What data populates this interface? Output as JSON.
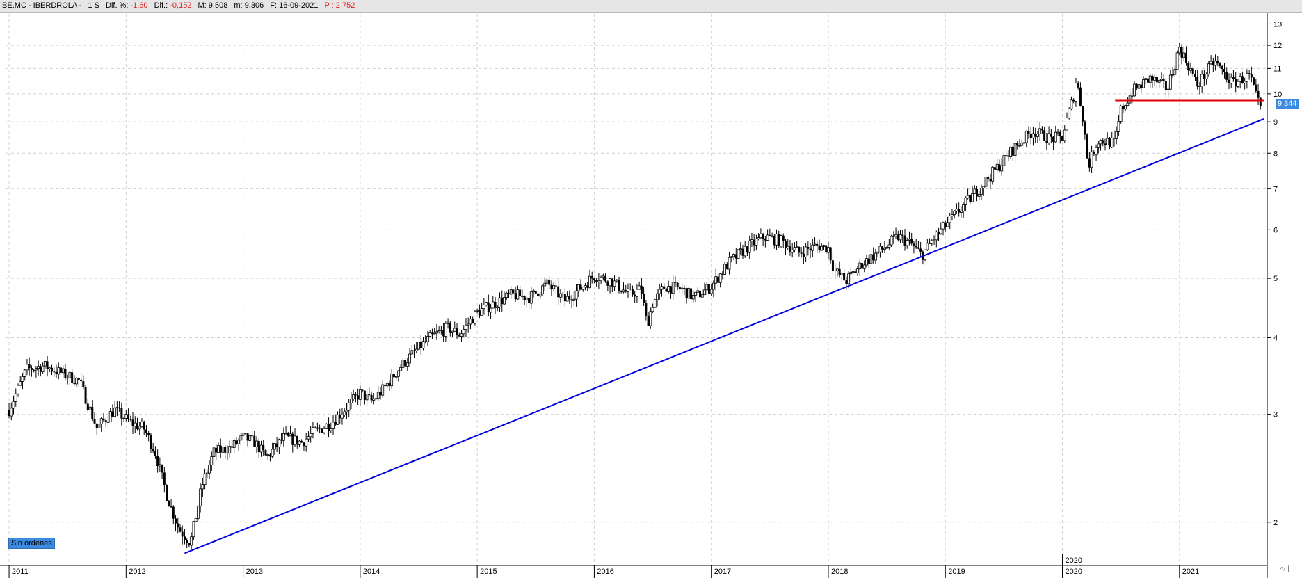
{
  "header": {
    "symbol": "IBE.MC - IBERDROLA -",
    "timeframe": "1 S",
    "dif_pct_label": "Dif. %:",
    "dif_pct_value": "-1,60",
    "dif_label": "Dif.:",
    "dif_value": "-0,152",
    "max_label": "M:",
    "max_value": "9,508",
    "min_label": "m:",
    "min_value": "9,306",
    "date_label": "F:",
    "date_value": "16-09-2021",
    "p_label": "P :",
    "p_value": "2,752"
  },
  "status": {
    "orders_label": "Sin órdenes"
  },
  "price_marker": "9,344",
  "colors": {
    "candle": "#000000",
    "trendline": "#0000dd",
    "support": "#e00000",
    "tag": "#3c8be0",
    "grid": "#d0d0d0"
  },
  "chart_data": {
    "type": "candlestick",
    "scale": "log",
    "ylim": [
      1.7,
      13.5
    ],
    "y_ticks": [
      2,
      3,
      4,
      5,
      6,
      7,
      8,
      9,
      10,
      11,
      12,
      13
    ],
    "xlim": [
      2010.97,
      2021.75
    ],
    "x_ticks": [
      {
        "x": 2011,
        "label": "2011"
      },
      {
        "x": 2012,
        "label": "2012"
      },
      {
        "x": 2013,
        "label": "2013"
      },
      {
        "x": 2014,
        "label": "2014"
      },
      {
        "x": 2015,
        "label": "2015"
      },
      {
        "x": 2016,
        "label": "2016"
      },
      {
        "x": 2017,
        "label": "2017"
      },
      {
        "x": 2018,
        "label": "2018"
      },
      {
        "x": 2019,
        "label": "2019"
      },
      {
        "x": 2020,
        "label": "2020"
      },
      {
        "x": 2021,
        "label": "2021"
      }
    ],
    "upper_date_label": {
      "x": 2020,
      "label": "2020"
    },
    "price_path": [
      [
        2011.0,
        3.05
      ],
      [
        2011.15,
        3.55
      ],
      [
        2011.3,
        3.6
      ],
      [
        2011.45,
        3.5
      ],
      [
        2011.6,
        3.4
      ],
      [
        2011.75,
        2.85
      ],
      [
        2011.9,
        3.05
      ],
      [
        2012.05,
        2.9
      ],
      [
        2012.15,
        2.85
      ],
      [
        2012.25,
        2.6
      ],
      [
        2012.35,
        2.2
      ],
      [
        2012.45,
        1.95
      ],
      [
        2012.55,
        1.85
      ],
      [
        2012.65,
        2.3
      ],
      [
        2012.75,
        2.6
      ],
      [
        2012.9,
        2.65
      ],
      [
        2013.0,
        2.75
      ],
      [
        2013.1,
        2.7
      ],
      [
        2013.2,
        2.55
      ],
      [
        2013.35,
        2.75
      ],
      [
        2013.5,
        2.7
      ],
      [
        2013.6,
        2.8
      ],
      [
        2013.75,
        2.9
      ],
      [
        2013.9,
        3.1
      ],
      [
        2014.0,
        3.25
      ],
      [
        2014.1,
        3.15
      ],
      [
        2014.2,
        3.3
      ],
      [
        2014.35,
        3.6
      ],
      [
        2014.5,
        3.85
      ],
      [
        2014.6,
        4.0
      ],
      [
        2014.75,
        4.15
      ],
      [
        2014.85,
        4.05
      ],
      [
        2015.0,
        4.4
      ],
      [
        2015.15,
        4.55
      ],
      [
        2015.3,
        4.7
      ],
      [
        2015.45,
        4.65
      ],
      [
        2015.6,
        4.9
      ],
      [
        2015.75,
        4.6
      ],
      [
        2015.9,
        4.85
      ],
      [
        2016.0,
        5.05
      ],
      [
        2016.15,
        4.95
      ],
      [
        2016.3,
        4.7
      ],
      [
        2016.4,
        4.8
      ],
      [
        2016.45,
        4.2
      ],
      [
        2016.5,
        4.55
      ],
      [
        2016.6,
        4.85
      ],
      [
        2016.75,
        4.8
      ],
      [
        2016.85,
        4.65
      ],
      [
        2017.0,
        4.85
      ],
      [
        2017.15,
        5.3
      ],
      [
        2017.3,
        5.6
      ],
      [
        2017.45,
        5.85
      ],
      [
        2017.6,
        5.75
      ],
      [
        2017.75,
        5.5
      ],
      [
        2017.9,
        5.65
      ],
      [
        2018.0,
        5.6
      ],
      [
        2018.05,
        5.15
      ],
      [
        2018.15,
        4.95
      ],
      [
        2018.3,
        5.3
      ],
      [
        2018.45,
        5.55
      ],
      [
        2018.6,
        5.85
      ],
      [
        2018.7,
        5.7
      ],
      [
        2018.8,
        5.45
      ],
      [
        2018.9,
        5.8
      ],
      [
        2019.0,
        6.1
      ],
      [
        2019.15,
        6.55
      ],
      [
        2019.3,
        7.05
      ],
      [
        2019.45,
        7.6
      ],
      [
        2019.6,
        8.2
      ],
      [
        2019.75,
        8.7
      ],
      [
        2019.9,
        8.45
      ],
      [
        2020.0,
        8.5
      ],
      [
        2020.1,
        10.0
      ],
      [
        2020.12,
        10.6
      ],
      [
        2020.18,
        9.0
      ],
      [
        2020.22,
        7.6
      ],
      [
        2020.3,
        8.4
      ],
      [
        2020.45,
        8.3
      ],
      [
        2020.5,
        9.4
      ],
      [
        2020.6,
        10.1
      ],
      [
        2020.75,
        10.6
      ],
      [
        2020.9,
        10.2
      ],
      [
        2021.0,
        11.9
      ],
      [
        2021.1,
        10.9
      ],
      [
        2021.15,
        10.3
      ],
      [
        2021.3,
        11.3
      ],
      [
        2021.45,
        10.4
      ],
      [
        2021.6,
        10.7
      ],
      [
        2021.66,
        9.8
      ],
      [
        2021.7,
        9.34
      ]
    ],
    "trendline": {
      "x1": 2012.5,
      "y1": 1.78,
      "x2": 2021.72,
      "y2": 9.1
    },
    "support_line": {
      "x1": 2020.45,
      "x2": 2021.72,
      "y": 9.75
    }
  }
}
